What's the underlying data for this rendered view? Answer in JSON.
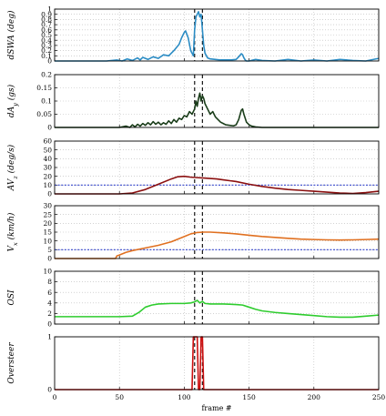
{
  "chart_data": [
    {
      "type": "line",
      "ylabel": "dSWA (deg)",
      "ylabel_html": [
        "d",
        "SWA",
        " (",
        "deg",
        ")"
      ],
      "ylim": [
        0,
        1
      ],
      "yticks": [
        "0",
        "0.1",
        "0.2",
        "0.3",
        "0.4",
        "0.5",
        "0.6",
        "0.7",
        "0.8",
        "0.9",
        "1"
      ],
      "xlim": [
        0,
        250
      ],
      "grid": true,
      "series": [
        {
          "color": "#2b8cc4",
          "x": [
            0,
            20,
            40,
            48,
            52,
            56,
            60,
            64,
            66,
            68,
            72,
            76,
            80,
            84,
            88,
            92,
            96,
            98,
            100,
            101,
            103,
            105,
            107,
            108,
            109,
            110,
            111,
            112,
            113,
            114,
            115,
            116,
            118,
            120,
            124,
            128,
            132,
            136,
            140,
            142,
            144,
            145,
            146,
            147,
            148,
            150,
            155,
            160,
            170,
            180,
            190,
            200,
            210,
            220,
            230,
            240,
            250
          ],
          "y": [
            0.0,
            0.0,
            0.0,
            0.02,
            0.0,
            0.04,
            0.01,
            0.06,
            0.02,
            0.07,
            0.03,
            0.08,
            0.05,
            0.12,
            0.1,
            0.2,
            0.32,
            0.45,
            0.55,
            0.58,
            0.45,
            0.2,
            0.1,
            0.6,
            0.85,
            0.9,
            0.95,
            0.85,
            0.9,
            0.6,
            0.3,
            0.15,
            0.06,
            0.04,
            0.03,
            0.02,
            0.02,
            0.02,
            0.03,
            0.08,
            0.14,
            0.12,
            0.06,
            0.02,
            0.0,
            0.0,
            0.03,
            0.01,
            0.0,
            0.03,
            0.0,
            0.02,
            0.0,
            0.03,
            0.01,
            0.0,
            0.05
          ]
        }
      ]
    },
    {
      "type": "line",
      "ylabel": "dAy (gs)",
      "ylabel_html": [
        "dA",
        "y",
        " (gs)"
      ],
      "ylim": [
        0,
        0.2
      ],
      "yticks": [
        "0",
        "0.05",
        "0.1",
        "0.15",
        "0.2"
      ],
      "xlim": [
        0,
        250
      ],
      "grid": true,
      "series": [
        {
          "color": "#1a3d1a",
          "x": [
            0,
            40,
            50,
            55,
            58,
            60,
            62,
            64,
            66,
            68,
            70,
            72,
            74,
            76,
            78,
            80,
            82,
            84,
            86,
            88,
            90,
            92,
            94,
            96,
            98,
            100,
            102,
            104,
            106,
            108,
            109,
            110,
            111,
            112,
            113,
            114,
            115,
            116,
            118,
            120,
            122,
            124,
            126,
            128,
            130,
            132,
            135,
            138,
            140,
            142,
            144,
            145,
            146,
            148,
            150,
            152,
            155,
            160,
            170,
            180,
            190,
            200,
            250
          ],
          "y": [
            0.0,
            0.0,
            0.0,
            0.005,
            0.0,
            0.01,
            0.002,
            0.012,
            0.005,
            0.015,
            0.008,
            0.018,
            0.01,
            0.022,
            0.012,
            0.02,
            0.01,
            0.018,
            0.012,
            0.025,
            0.015,
            0.03,
            0.02,
            0.035,
            0.03,
            0.045,
            0.04,
            0.06,
            0.05,
            0.07,
            0.1,
            0.08,
            0.11,
            0.13,
            0.1,
            0.12,
            0.11,
            0.09,
            0.07,
            0.05,
            0.06,
            0.04,
            0.03,
            0.02,
            0.015,
            0.01,
            0.008,
            0.006,
            0.01,
            0.03,
            0.065,
            0.07,
            0.05,
            0.02,
            0.01,
            0.005,
            0.002,
            0.0,
            0.0,
            0.0,
            0.0,
            0.0,
            0.0
          ]
        }
      ]
    },
    {
      "type": "line",
      "ylabel": "AVz (deg/s)",
      "ylabel_html": [
        "AV",
        "z",
        " (",
        "deg/s",
        ")"
      ],
      "ylim": [
        0,
        60
      ],
      "yticks": [
        "0",
        "10",
        "20",
        "30",
        "40",
        "50",
        "60"
      ],
      "xlim": [
        0,
        250
      ],
      "grid": true,
      "threshold": 10,
      "series": [
        {
          "color": "#8b1010",
          "x": [
            0,
            50,
            60,
            70,
            80,
            90,
            95,
            100,
            105,
            110,
            115,
            120,
            125,
            130,
            135,
            140,
            150,
            160,
            170,
            180,
            190,
            200,
            210,
            220,
            230,
            240,
            250
          ],
          "y": [
            0,
            0,
            1,
            5,
            11,
            17,
            19.5,
            20,
            19,
            18.5,
            18,
            17.5,
            17,
            16,
            15,
            14,
            11,
            8.5,
            6.5,
            5,
            4,
            3,
            2,
            1,
            0.5,
            1.5,
            3
          ]
        }
      ]
    },
    {
      "type": "line",
      "ylabel": "Vx (km/h)",
      "ylabel_html": [
        "V",
        "x",
        " (",
        "km/h",
        ")"
      ],
      "ylim": [
        0,
        30
      ],
      "yticks": [
        "0",
        "5",
        "10",
        "15",
        "20",
        "25",
        "30"
      ],
      "xlim": [
        0,
        250
      ],
      "grid": true,
      "threshold": 5,
      "series": [
        {
          "color": "#e07020",
          "x": [
            0,
            40,
            47,
            48,
            50,
            55,
            60,
            70,
            80,
            90,
            95,
            100,
            105,
            110,
            115,
            120,
            130,
            140,
            150,
            160,
            170,
            180,
            190,
            200,
            210,
            220,
            230,
            240,
            250
          ],
          "y": [
            0,
            0,
            0,
            1.5,
            2,
            3.5,
            4.5,
            6,
            7.5,
            9.5,
            11,
            12.5,
            14,
            14.8,
            15,
            15,
            14.6,
            14,
            13.2,
            12.5,
            12,
            11.5,
            11,
            10.8,
            10.6,
            10.5,
            10.6,
            10.8,
            11
          ]
        }
      ]
    },
    {
      "type": "line",
      "ylabel": "OSI",
      "ylabel_html": [
        "OSI"
      ],
      "ylim": [
        0,
        10
      ],
      "yticks": [
        "0",
        "2",
        "4",
        "6",
        "8",
        "10"
      ],
      "xlim": [
        0,
        250
      ],
      "grid": true,
      "series": [
        {
          "color": "#2ecc2e",
          "x": [
            0,
            50,
            60,
            65,
            70,
            75,
            80,
            90,
            100,
            105,
            108,
            110,
            112,
            114,
            116,
            120,
            130,
            140,
            145,
            150,
            155,
            160,
            170,
            180,
            190,
            200,
            210,
            220,
            230,
            240,
            250
          ],
          "y": [
            1.4,
            1.4,
            1.5,
            2.2,
            3.2,
            3.6,
            3.8,
            3.9,
            3.9,
            4.0,
            4.2,
            4.5,
            4.0,
            4.3,
            3.9,
            3.8,
            3.8,
            3.7,
            3.6,
            3.2,
            2.8,
            2.5,
            2.2,
            2.0,
            1.8,
            1.6,
            1.4,
            1.3,
            1.3,
            1.5,
            1.7
          ]
        }
      ]
    },
    {
      "type": "line",
      "ylabel": "Oversteer",
      "ylabel_html": [
        "Oversteer"
      ],
      "ylim": [
        0,
        1
      ],
      "yticks": [
        "0",
        "1"
      ],
      "xlim": [
        0,
        250
      ],
      "grid": true,
      "series": [
        {
          "color": "#cc1010",
          "x": [
            0,
            106,
            107,
            108,
            109,
            110,
            111,
            112,
            113,
            114,
            115,
            116,
            250
          ],
          "y": [
            0,
            0,
            1,
            1,
            1,
            1,
            0,
            0,
            1,
            1,
            0,
            0,
            0
          ]
        }
      ]
    }
  ],
  "x_axis": {
    "label": "frame #",
    "ticks": [
      0,
      50,
      100,
      150,
      200,
      250
    ]
  },
  "markers": [
    108,
    114
  ],
  "threshold_color": "#3344cc"
}
